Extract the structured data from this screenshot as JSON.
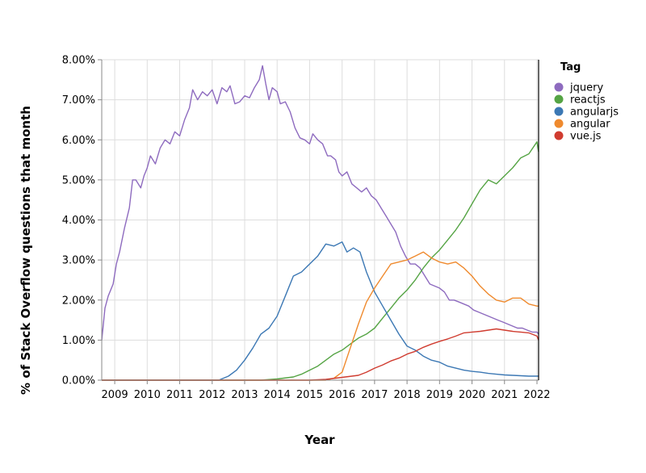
{
  "chart_data": {
    "type": "line",
    "title": "",
    "xlabel": "Year",
    "ylabel": "% of Stack Overflow questions that month",
    "xlim": [
      2008.6,
      2022.05
    ],
    "ylim": [
      0,
      8
    ],
    "x_ticks": [
      "2009",
      "2010",
      "2011",
      "2012",
      "2013",
      "2014",
      "2015",
      "2016",
      "2017",
      "2018",
      "2019",
      "2020",
      "2021",
      "2022"
    ],
    "y_ticks": [
      "0.00%",
      "1.00%",
      "2.00%",
      "3.00%",
      "4.00%",
      "5.00%",
      "6.00%",
      "7.00%",
      "8.00%"
    ],
    "grid": true,
    "legend": {
      "title": "Tag",
      "position": "right"
    },
    "series": [
      {
        "name": "jquery",
        "color": "#8e6bbf",
        "points": [
          [
            2008.6,
            1.0
          ],
          [
            2008.7,
            1.8
          ],
          [
            2008.8,
            2.1
          ],
          [
            2008.95,
            2.4
          ],
          [
            2009.05,
            2.9
          ],
          [
            2009.15,
            3.2
          ],
          [
            2009.3,
            3.8
          ],
          [
            2009.45,
            4.3
          ],
          [
            2009.55,
            5.0
          ],
          [
            2009.65,
            5.0
          ],
          [
            2009.8,
            4.8
          ],
          [
            2009.9,
            5.1
          ],
          [
            2010.0,
            5.3
          ],
          [
            2010.1,
            5.6
          ],
          [
            2010.25,
            5.4
          ],
          [
            2010.4,
            5.8
          ],
          [
            2010.55,
            6.0
          ],
          [
            2010.7,
            5.9
          ],
          [
            2010.85,
            6.2
          ],
          [
            2011.0,
            6.1
          ],
          [
            2011.15,
            6.5
          ],
          [
            2011.3,
            6.8
          ],
          [
            2011.4,
            7.25
          ],
          [
            2011.55,
            7.0
          ],
          [
            2011.7,
            7.2
          ],
          [
            2011.85,
            7.1
          ],
          [
            2012.0,
            7.25
          ],
          [
            2012.15,
            6.9
          ],
          [
            2012.3,
            7.3
          ],
          [
            2012.45,
            7.2
          ],
          [
            2012.55,
            7.35
          ],
          [
            2012.7,
            6.9
          ],
          [
            2012.85,
            6.95
          ],
          [
            2013.0,
            7.1
          ],
          [
            2013.15,
            7.05
          ],
          [
            2013.3,
            7.3
          ],
          [
            2013.45,
            7.5
          ],
          [
            2013.55,
            7.85
          ],
          [
            2013.65,
            7.4
          ],
          [
            2013.75,
            7.0
          ],
          [
            2013.85,
            7.3
          ],
          [
            2014.0,
            7.2
          ],
          [
            2014.1,
            6.9
          ],
          [
            2014.25,
            6.95
          ],
          [
            2014.4,
            6.7
          ],
          [
            2014.55,
            6.3
          ],
          [
            2014.7,
            6.05
          ],
          [
            2014.85,
            6.0
          ],
          [
            2015.0,
            5.9
          ],
          [
            2015.1,
            6.15
          ],
          [
            2015.25,
            6.0
          ],
          [
            2015.4,
            5.9
          ],
          [
            2015.55,
            5.6
          ],
          [
            2015.65,
            5.6
          ],
          [
            2015.8,
            5.5
          ],
          [
            2015.9,
            5.2
          ],
          [
            2016.0,
            5.1
          ],
          [
            2016.15,
            5.2
          ],
          [
            2016.3,
            4.9
          ],
          [
            2016.45,
            4.8
          ],
          [
            2016.6,
            4.7
          ],
          [
            2016.75,
            4.8
          ],
          [
            2016.9,
            4.6
          ],
          [
            2017.05,
            4.5
          ],
          [
            2017.2,
            4.3
          ],
          [
            2017.35,
            4.1
          ],
          [
            2017.5,
            3.9
          ],
          [
            2017.65,
            3.7
          ],
          [
            2017.8,
            3.35
          ],
          [
            2017.95,
            3.1
          ],
          [
            2018.1,
            2.9
          ],
          [
            2018.25,
            2.9
          ],
          [
            2018.4,
            2.8
          ],
          [
            2018.55,
            2.6
          ],
          [
            2018.7,
            2.4
          ],
          [
            2018.85,
            2.35
          ],
          [
            2019.0,
            2.3
          ],
          [
            2019.15,
            2.2
          ],
          [
            2019.3,
            2.0
          ],
          [
            2019.45,
            2.0
          ],
          [
            2019.6,
            1.95
          ],
          [
            2019.75,
            1.9
          ],
          [
            2019.9,
            1.85
          ],
          [
            2020.05,
            1.75
          ],
          [
            2020.2,
            1.7
          ],
          [
            2020.35,
            1.65
          ],
          [
            2020.5,
            1.6
          ],
          [
            2020.65,
            1.55
          ],
          [
            2020.8,
            1.5
          ],
          [
            2020.95,
            1.45
          ],
          [
            2021.1,
            1.4
          ],
          [
            2021.25,
            1.35
          ],
          [
            2021.4,
            1.3
          ],
          [
            2021.55,
            1.3
          ],
          [
            2021.7,
            1.25
          ],
          [
            2021.85,
            1.2
          ],
          [
            2022.0,
            1.2
          ],
          [
            2022.05,
            1.15
          ]
        ]
      },
      {
        "name": "reactjs",
        "color": "#55a444",
        "points": [
          [
            2008.6,
            0.0
          ],
          [
            2013.5,
            0.0
          ],
          [
            2014.0,
            0.03
          ],
          [
            2014.5,
            0.08
          ],
          [
            2014.75,
            0.15
          ],
          [
            2015.0,
            0.25
          ],
          [
            2015.25,
            0.35
          ],
          [
            2015.5,
            0.5
          ],
          [
            2015.75,
            0.65
          ],
          [
            2016.0,
            0.75
          ],
          [
            2016.25,
            0.9
          ],
          [
            2016.5,
            1.05
          ],
          [
            2016.75,
            1.15
          ],
          [
            2017.0,
            1.3
          ],
          [
            2017.25,
            1.55
          ],
          [
            2017.5,
            1.8
          ],
          [
            2017.75,
            2.05
          ],
          [
            2018.0,
            2.25
          ],
          [
            2018.25,
            2.5
          ],
          [
            2018.5,
            2.8
          ],
          [
            2018.75,
            3.05
          ],
          [
            2019.0,
            3.25
          ],
          [
            2019.25,
            3.5
          ],
          [
            2019.5,
            3.75
          ],
          [
            2019.75,
            4.05
          ],
          [
            2020.0,
            4.4
          ],
          [
            2020.25,
            4.75
          ],
          [
            2020.5,
            5.0
          ],
          [
            2020.75,
            4.9
          ],
          [
            2021.0,
            5.1
          ],
          [
            2021.25,
            5.3
          ],
          [
            2021.5,
            5.55
          ],
          [
            2021.75,
            5.65
          ],
          [
            2022.0,
            5.95
          ],
          [
            2022.05,
            5.7
          ]
        ]
      },
      {
        "name": "angularjs",
        "color": "#3c78b4",
        "points": [
          [
            2008.6,
            0.0
          ],
          [
            2012.2,
            0.0
          ],
          [
            2012.5,
            0.1
          ],
          [
            2012.75,
            0.25
          ],
          [
            2013.0,
            0.5
          ],
          [
            2013.25,
            0.8
          ],
          [
            2013.5,
            1.15
          ],
          [
            2013.75,
            1.3
          ],
          [
            2014.0,
            1.6
          ],
          [
            2014.25,
            2.1
          ],
          [
            2014.5,
            2.6
          ],
          [
            2014.75,
            2.7
          ],
          [
            2015.0,
            2.9
          ],
          [
            2015.25,
            3.1
          ],
          [
            2015.5,
            3.4
          ],
          [
            2015.75,
            3.35
          ],
          [
            2016.0,
            3.45
          ],
          [
            2016.15,
            3.2
          ],
          [
            2016.35,
            3.3
          ],
          [
            2016.55,
            3.2
          ],
          [
            2016.75,
            2.7
          ],
          [
            2017.0,
            2.2
          ],
          [
            2017.25,
            1.85
          ],
          [
            2017.5,
            1.5
          ],
          [
            2017.75,
            1.15
          ],
          [
            2018.0,
            0.85
          ],
          [
            2018.25,
            0.75
          ],
          [
            2018.5,
            0.6
          ],
          [
            2018.75,
            0.5
          ],
          [
            2019.0,
            0.45
          ],
          [
            2019.25,
            0.35
          ],
          [
            2019.5,
            0.3
          ],
          [
            2019.75,
            0.25
          ],
          [
            2020.0,
            0.22
          ],
          [
            2020.25,
            0.2
          ],
          [
            2020.5,
            0.17
          ],
          [
            2020.75,
            0.15
          ],
          [
            2021.0,
            0.13
          ],
          [
            2021.25,
            0.12
          ],
          [
            2021.5,
            0.11
          ],
          [
            2021.75,
            0.1
          ],
          [
            2022.05,
            0.1
          ]
        ]
      },
      {
        "name": "angular",
        "color": "#ef8a2e",
        "points": [
          [
            2008.6,
            0.0
          ],
          [
            2015.5,
            0.0
          ],
          [
            2015.75,
            0.05
          ],
          [
            2016.0,
            0.2
          ],
          [
            2016.25,
            0.8
          ],
          [
            2016.5,
            1.4
          ],
          [
            2016.75,
            1.95
          ],
          [
            2017.0,
            2.3
          ],
          [
            2017.25,
            2.6
          ],
          [
            2017.5,
            2.9
          ],
          [
            2017.75,
            2.95
          ],
          [
            2018.0,
            3.0
          ],
          [
            2018.25,
            3.1
          ],
          [
            2018.5,
            3.2
          ],
          [
            2018.75,
            3.05
          ],
          [
            2019.0,
            2.95
          ],
          [
            2019.25,
            2.9
          ],
          [
            2019.5,
            2.95
          ],
          [
            2019.75,
            2.8
          ],
          [
            2020.0,
            2.6
          ],
          [
            2020.25,
            2.35
          ],
          [
            2020.5,
            2.15
          ],
          [
            2020.75,
            2.0
          ],
          [
            2021.0,
            1.95
          ],
          [
            2021.25,
            2.05
          ],
          [
            2021.5,
            2.05
          ],
          [
            2021.75,
            1.9
          ],
          [
            2022.0,
            1.85
          ],
          [
            2022.05,
            1.85
          ]
        ]
      },
      {
        "name": "vue.js",
        "color": "#d03c30",
        "points": [
          [
            2008.6,
            0.0
          ],
          [
            2015.0,
            0.0
          ],
          [
            2015.5,
            0.02
          ],
          [
            2016.0,
            0.07
          ],
          [
            2016.5,
            0.12
          ],
          [
            2016.75,
            0.2
          ],
          [
            2017.0,
            0.3
          ],
          [
            2017.25,
            0.38
          ],
          [
            2017.5,
            0.48
          ],
          [
            2017.75,
            0.55
          ],
          [
            2018.0,
            0.65
          ],
          [
            2018.25,
            0.72
          ],
          [
            2018.5,
            0.82
          ],
          [
            2018.75,
            0.9
          ],
          [
            2019.0,
            0.97
          ],
          [
            2019.25,
            1.03
          ],
          [
            2019.5,
            1.1
          ],
          [
            2019.75,
            1.18
          ],
          [
            2020.0,
            1.2
          ],
          [
            2020.25,
            1.22
          ],
          [
            2020.5,
            1.25
          ],
          [
            2020.75,
            1.28
          ],
          [
            2021.0,
            1.25
          ],
          [
            2021.25,
            1.22
          ],
          [
            2021.5,
            1.2
          ],
          [
            2021.75,
            1.18
          ],
          [
            2022.0,
            1.1
          ],
          [
            2022.05,
            1.0
          ]
        ]
      }
    ]
  }
}
